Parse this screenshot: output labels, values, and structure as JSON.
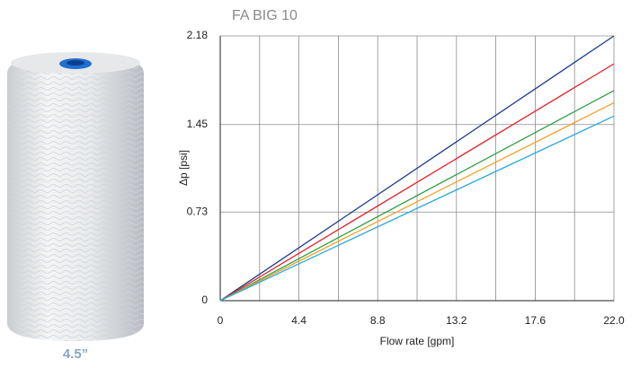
{
  "product_label": "4.5”",
  "chart_data": {
    "type": "line",
    "title": "FA BIG 10",
    "x_label": "Flow rate [gpm]",
    "y_label": "Δp [psi]",
    "xlim": [
      0,
      22
    ],
    "ylim": [
      0,
      2.18
    ],
    "xticks": [
      0,
      4.4,
      8.8,
      13.2,
      17.6,
      {
        "value": 22,
        "label": "22.0"
      }
    ],
    "xminor": [
      2.2,
      6.6,
      11,
      15.4,
      19.8
    ],
    "yticks": [
      0,
      0.73,
      1.45,
      2.18
    ],
    "grid": true,
    "x": [
      0,
      22
    ],
    "series": [
      {
        "color": "#1f3c8c",
        "values": [
          0,
          2.18
        ]
      },
      {
        "color": "#e2232b",
        "values": [
          0,
          1.95
        ]
      },
      {
        "color": "#2e9e44",
        "values": [
          0,
          1.73
        ]
      },
      {
        "color": "#f5a024",
        "values": [
          0,
          1.63
        ]
      },
      {
        "color": "#2ba8df",
        "values": [
          0,
          1.52
        ]
      }
    ]
  }
}
